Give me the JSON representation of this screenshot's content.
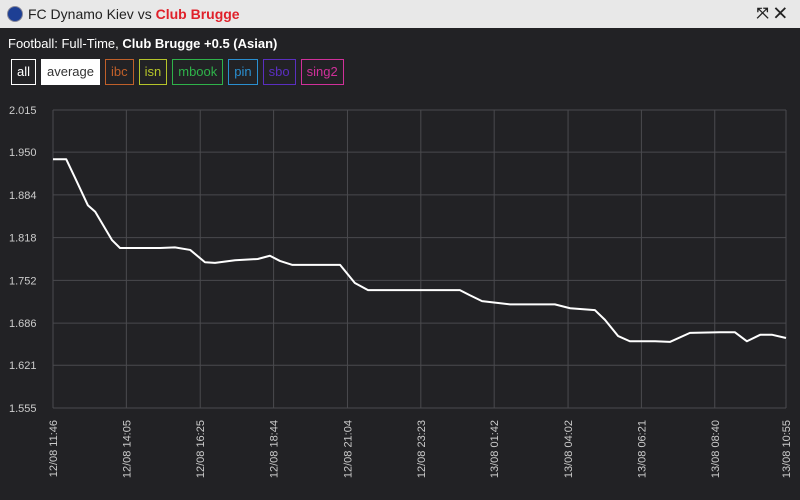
{
  "header": {
    "home": "FC Dynamo Kiev",
    "vs": "vs",
    "away": "Club Brugge"
  },
  "subtitle": {
    "sport": "Football: Full-Time,",
    "market": "Club Brugge +0.5 (Asian)"
  },
  "filters": [
    {
      "label": "all",
      "color": "#ffffff"
    },
    {
      "label": "average",
      "color": "#ffffff"
    },
    {
      "label": "ibc",
      "color": "#c0602a"
    },
    {
      "label": "isn",
      "color": "#b5c42a"
    },
    {
      "label": "mbook",
      "color": "#2fb24a"
    },
    {
      "label": "pin",
      "color": "#2a8fd0"
    },
    {
      "label": "sbo",
      "color": "#5a2fc0"
    },
    {
      "label": "sing2",
      "color": "#d0309a"
    }
  ],
  "chart_data": {
    "type": "line",
    "grid": true,
    "xlim": [
      0,
      1389
    ],
    "xticks": [
      {
        "value": 0,
        "label": "12/08 11:46"
      },
      {
        "value": 139,
        "label": "12/08 14:05"
      },
      {
        "value": 279,
        "label": "12/08 16:25"
      },
      {
        "value": 418,
        "label": "12/08 18:44"
      },
      {
        "value": 558,
        "label": "12/08 21:04"
      },
      {
        "value": 697,
        "label": "12/08 23:23"
      },
      {
        "value": 836,
        "label": "13/08 01:42"
      },
      {
        "value": 976,
        "label": "13/08 04:02"
      },
      {
        "value": 1115,
        "label": "13/08 06:21"
      },
      {
        "value": 1254,
        "label": "13/08 08:40"
      },
      {
        "value": 1389,
        "label": "13/08 10:55"
      }
    ],
    "ylim": [
      1.555,
      2.015
    ],
    "yticks": [
      1.555,
      1.621,
      1.686,
      1.752,
      1.818,
      1.884,
      {
        "value": 1.95,
        "label": "1.950"
      },
      2.015
    ],
    "series": [
      {
        "name": "average",
        "color": "#ffffff",
        "x": [
          0,
          25,
          42,
          66,
          80,
          112,
          127,
          203,
          231,
          260,
          288,
          307,
          345,
          388,
          411,
          430,
          453,
          544,
          572,
          597,
          771,
          790,
          813,
          866,
          951,
          980,
          1027,
          1046,
          1071,
          1093,
          1141,
          1169,
          1207,
          1264,
          1292,
          1315,
          1340,
          1363,
          1389
        ],
        "values": [
          1.939,
          1.939,
          1.91,
          1.868,
          1.858,
          1.814,
          1.802,
          1.802,
          1.803,
          1.799,
          1.78,
          1.779,
          1.783,
          1.785,
          1.79,
          1.782,
          1.776,
          1.776,
          1.748,
          1.737,
          1.737,
          1.729,
          1.72,
          1.715,
          1.715,
          1.709,
          1.706,
          1.691,
          1.666,
          1.658,
          1.658,
          1.657,
          1.671,
          1.672,
          1.672,
          1.658,
          1.668,
          1.668,
          1.663
        ]
      }
    ]
  }
}
